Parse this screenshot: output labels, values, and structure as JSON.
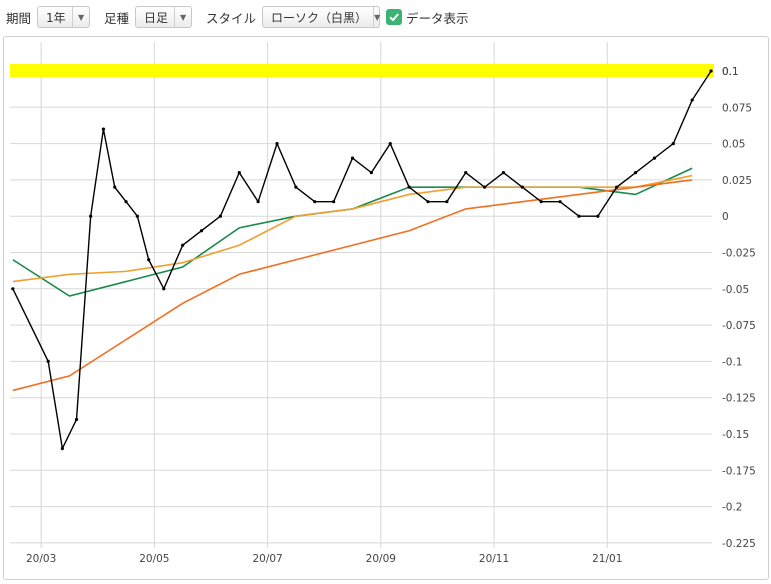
{
  "toolbar": {
    "period_label": "期間",
    "period_value": "1年",
    "interval_label": "足種",
    "interval_value": "日足",
    "style_label": "スタイル",
    "style_value": "ローソク（白黒）",
    "show_data_label": "データ表示",
    "show_data_checked": true
  },
  "colors": {
    "candle": "#000000",
    "ma_short": "#1a8a4a",
    "ma_mid": "#f0a030",
    "ma_long": "#f07020",
    "highlight": "#ffff00",
    "grid": "#d8d8d8"
  },
  "chart_data": {
    "type": "line",
    "title": "",
    "xlabel": "",
    "ylabel": "",
    "ylim": [
      -0.225,
      0.1
    ],
    "y_ticks": [
      "0.1",
      "0.075",
      "0.05",
      "0.025",
      "0",
      "-0.025",
      "-0.05",
      "-0.075",
      "-0.1",
      "-0.125",
      "-0.15",
      "-0.175",
      "-0.2",
      "-0.225"
    ],
    "x_ticks": [
      "20/03",
      "20/05",
      "20/07",
      "20/09",
      "20/11",
      "21/01"
    ],
    "highlight_value": 0.1,
    "series": [
      {
        "role": "price",
        "x": [
          "20/02",
          "20/03",
          "20/03",
          "20/03",
          "20/03",
          "20/04",
          "20/04",
          "20/04",
          "20/04",
          "20/04",
          "20/05",
          "20/05",
          "20/05",
          "20/06",
          "20/06",
          "20/06",
          "20/07",
          "20/07",
          "20/07",
          "20/08",
          "20/08",
          "20/08",
          "20/09",
          "20/09",
          "20/09",
          "20/10",
          "20/10",
          "20/10",
          "20/11",
          "20/11",
          "20/11",
          "20/12",
          "20/12",
          "20/12",
          "21/01",
          "21/01",
          "21/01",
          "21/02",
          "21/02",
          "21/02"
        ],
        "values": [
          -0.05,
          -0.1,
          -0.16,
          -0.14,
          0.0,
          0.06,
          0.02,
          0.01,
          0.0,
          -0.03,
          -0.05,
          -0.02,
          -0.01,
          0.0,
          0.03,
          0.01,
          0.05,
          0.02,
          0.01,
          0.01,
          0.04,
          0.03,
          0.05,
          0.02,
          0.01,
          0.01,
          0.03,
          0.02,
          0.03,
          0.02,
          0.01,
          0.01,
          0.0,
          0.0,
          0.02,
          0.03,
          0.04,
          0.05,
          0.08,
          0.1
        ]
      },
      {
        "role": "ma_short",
        "x": [
          "20/02",
          "20/03",
          "20/04",
          "20/05",
          "20/06",
          "20/07",
          "20/08",
          "20/09",
          "20/10",
          "20/11",
          "20/12",
          "21/01",
          "21/02"
        ],
        "values": [
          -0.03,
          -0.055,
          -0.045,
          -0.035,
          -0.008,
          0.0,
          0.005,
          0.02,
          0.02,
          0.02,
          0.02,
          0.015,
          0.033
        ]
      },
      {
        "role": "ma_mid",
        "x": [
          "20/02",
          "20/03",
          "20/04",
          "20/05",
          "20/06",
          "20/07",
          "20/08",
          "20/09",
          "20/10",
          "20/11",
          "20/12",
          "21/01",
          "21/02"
        ],
        "values": [
          -0.045,
          -0.04,
          -0.038,
          -0.032,
          -0.02,
          0.0,
          0.005,
          0.015,
          0.02,
          0.02,
          0.02,
          0.02,
          0.028
        ]
      },
      {
        "role": "ma_long",
        "x": [
          "20/02",
          "20/03",
          "20/04",
          "20/05",
          "20/06",
          "20/07",
          "20/08",
          "20/09",
          "20/10",
          "20/11",
          "20/12",
          "21/01",
          "21/02"
        ],
        "values": [
          -0.12,
          -0.11,
          -0.085,
          -0.06,
          -0.04,
          -0.03,
          -0.02,
          -0.01,
          0.005,
          0.01,
          0.015,
          0.02,
          0.025
        ]
      }
    ]
  }
}
